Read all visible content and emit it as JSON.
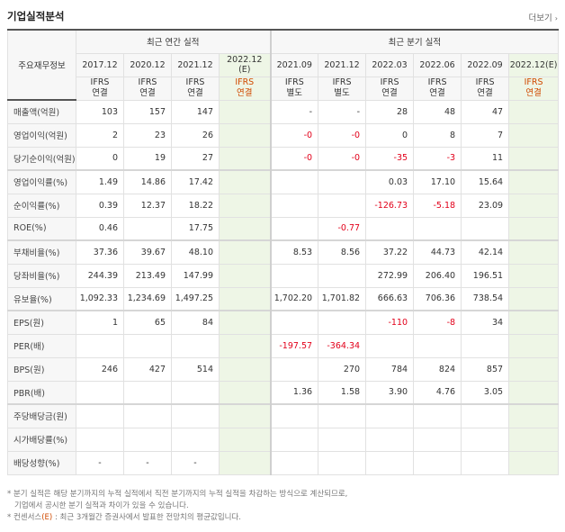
{
  "header": {
    "title": "기업실적분석",
    "more_label": "더보기",
    "more_arrow": "›"
  },
  "table": {
    "row_header_label": "주요재무정보",
    "group_annual": "최근 연간 실적",
    "group_quarter": "최근 분기 실적",
    "periods": [
      "2017.12",
      "2020.12",
      "2021.12",
      "2022.12",
      "2021.09",
      "2021.12",
      "2022.03",
      "2022.06",
      "2022.09",
      "2022.12"
    ],
    "est_suffix": "(E)",
    "types": [
      {
        "line1": "IFRS",
        "line2": "연결"
      },
      {
        "line1": "IFRS",
        "line2": "연결"
      },
      {
        "line1": "IFRS",
        "line2": "연결"
      },
      {
        "line1": "IFRS",
        "line2": "연결"
      },
      {
        "line1": "IFRS",
        "line2": "별도"
      },
      {
        "line1": "IFRS",
        "line2": "별도"
      },
      {
        "line1": "IFRS",
        "line2": "연결"
      },
      {
        "line1": "IFRS",
        "line2": "연결"
      },
      {
        "line1": "IFRS",
        "line2": "연결"
      },
      {
        "line1": "IFRS",
        "line2": "연결"
      }
    ],
    "rows": [
      {
        "label": "매출액(억원)",
        "values": [
          "103",
          "157",
          "147",
          "",
          "-",
          "-",
          "28",
          "48",
          "47",
          ""
        ]
      },
      {
        "label": "영업이익(억원)",
        "values": [
          "2",
          "23",
          "26",
          "",
          "-0",
          "-0",
          "0",
          "8",
          "7",
          ""
        ]
      },
      {
        "label": "당기순이익(억원)",
        "values": [
          "0",
          "19",
          "27",
          "",
          "-0",
          "-0",
          "-35",
          "-3",
          "11",
          ""
        ]
      },
      {
        "label": "영업이익률(%)",
        "values": [
          "1.49",
          "14.86",
          "17.42",
          "",
          "",
          "",
          "0.03",
          "17.10",
          "15.64",
          ""
        ]
      },
      {
        "label": "순이익률(%)",
        "values": [
          "0.39",
          "12.37",
          "18.22",
          "",
          "",
          "",
          "-126.73",
          "-5.18",
          "23.09",
          ""
        ]
      },
      {
        "label": "ROE(%)",
        "values": [
          "0.46",
          "",
          "17.75",
          "",
          "",
          "-0.77",
          "",
          "",
          "",
          ""
        ]
      },
      {
        "label": "부채비율(%)",
        "values": [
          "37.36",
          "39.67",
          "48.10",
          "",
          "8.53",
          "8.56",
          "37.22",
          "44.73",
          "42.14",
          ""
        ]
      },
      {
        "label": "당좌비율(%)",
        "values": [
          "244.39",
          "213.49",
          "147.99",
          "",
          "",
          "",
          "272.99",
          "206.40",
          "196.51",
          ""
        ]
      },
      {
        "label": "유보율(%)",
        "values": [
          "1,092.33",
          "1,234.69",
          "1,497.25",
          "",
          "1,702.20",
          "1,701.82",
          "666.63",
          "706.36",
          "738.54",
          ""
        ]
      },
      {
        "label": "EPS(원)",
        "values": [
          "1",
          "65",
          "84",
          "",
          "",
          "",
          "-110",
          "-8",
          "34",
          ""
        ]
      },
      {
        "label": "PER(배)",
        "values": [
          "",
          "",
          "",
          "",
          "-197.57",
          "-364.34",
          "",
          "",
          "",
          ""
        ]
      },
      {
        "label": "BPS(원)",
        "values": [
          "246",
          "427",
          "514",
          "",
          "",
          "270",
          "784",
          "824",
          "857",
          ""
        ]
      },
      {
        "label": "PBR(배)",
        "values": [
          "",
          "",
          "",
          "",
          "1.36",
          "1.58",
          "3.90",
          "4.76",
          "3.05",
          ""
        ]
      },
      {
        "label": "주당배당금(원)",
        "values": [
          "",
          "",
          "",
          "",
          "",
          "",
          "",
          "",
          "",
          ""
        ]
      },
      {
        "label": "시가배당률(%)",
        "values": [
          "",
          "",
          "",
          "",
          "",
          "",
          "",
          "",
          "",
          ""
        ]
      },
      {
        "label": "배당성향(%)",
        "values": [
          "-",
          "-",
          "-",
          "",
          "",
          "",
          "",
          "",
          "",
          ""
        ]
      }
    ]
  },
  "notes": {
    "line1": "* 분기 실적은 해당 분기까지의 누적 실적에서 직전 분기까지의 누적 실적을 차감하는 방식으로 계산되므로,",
    "line2": "기업에서 공시한 분기 실적과 차이가 있을 수 있습니다.",
    "line3_prefix": "* 컨센서스",
    "line3_e": "(E)",
    "line3_rest": " : 최근 3개월간 증권사에서 발표한 전망치의 평균값입니다."
  },
  "colors": {
    "accent": "#d04a00",
    "negative": "#e2001a",
    "estimate_bg": "#eef6e6",
    "header_bg": "#f7f7f7"
  }
}
